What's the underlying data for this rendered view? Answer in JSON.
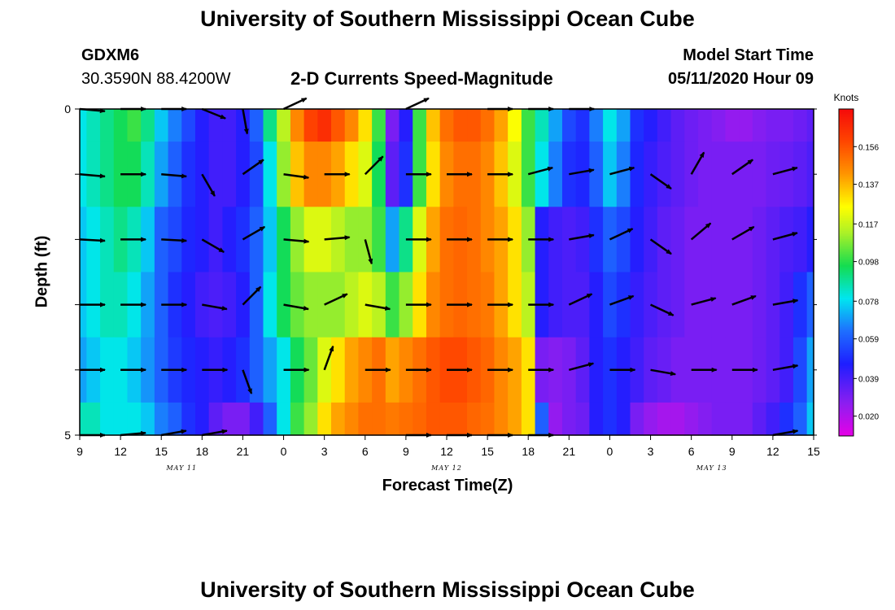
{
  "page_title": "University of Southern Mississippi Ocean Cube",
  "footer_title": "University of Southern Mississippi Ocean Cube",
  "station": {
    "id": "GDXM6",
    "coords": "30.3590N 88.4200W"
  },
  "model_start": {
    "label": "Model Start Time",
    "value": "05/11/2020 Hour 09"
  },
  "chart_data": {
    "type": "heatmap",
    "title": "2-D Currents Speed-Magnitude",
    "xlabel": "Forecast Time(Z)",
    "ylabel": "Depth (ft)",
    "x_ticks": [
      "9",
      "12",
      "15",
      "18",
      "21",
      "0",
      "3",
      "6",
      "9",
      "12",
      "15",
      "18",
      "21",
      "0",
      "3",
      "6",
      "9",
      "12",
      "15"
    ],
    "x_tick_hours": [
      0,
      3,
      6,
      9,
      12,
      15,
      18,
      21,
      24,
      27,
      30,
      33,
      36,
      39,
      42,
      45,
      48,
      51,
      54
    ],
    "date_labels": [
      {
        "text": "MAY 11",
        "hour": 7.5
      },
      {
        "text": "MAY 12",
        "hour": 27
      },
      {
        "text": "MAY 13",
        "hour": 46.5
      }
    ],
    "y_ticks": [
      "0",
      "5"
    ],
    "ylim": [
      0,
      5
    ],
    "xlim_hours": [
      0,
      54
    ],
    "colorbar": {
      "title": "Knots",
      "ticks": [
        "0.156",
        "0.137",
        "0.117",
        "0.098",
        "0.078",
        "0.059",
        "0.039",
        "0.020"
      ],
      "tick_values": [
        0.156,
        0.137,
        0.117,
        0.098,
        0.078,
        0.059,
        0.039,
        0.02
      ],
      "range": [
        0.01,
        0.175
      ]
    },
    "time_hours": [
      0,
      1,
      2,
      3,
      4,
      5,
      6,
      7,
      8,
      9,
      10,
      11,
      12,
      13,
      14,
      15,
      16,
      17,
      18,
      19,
      20,
      21,
      22,
      23,
      24,
      25,
      26,
      27,
      28,
      29,
      30,
      31,
      32,
      33,
      34,
      35,
      36,
      37,
      38,
      39,
      40,
      41,
      42,
      43,
      44,
      45,
      46,
      47,
      48,
      49,
      50,
      51,
      52,
      53,
      54
    ],
    "depth_rows_ft": [
      0,
      1,
      2,
      3,
      4,
      5
    ],
    "speed_knots": [
      [
        0.08,
        0.085,
        0.09,
        0.095,
        0.1,
        0.09,
        0.075,
        0.065,
        0.055,
        0.045,
        0.04,
        0.04,
        0.045,
        0.06,
        0.09,
        0.115,
        0.145,
        0.16,
        0.165,
        0.155,
        0.145,
        0.13,
        0.1,
        0.03,
        0.045,
        0.1,
        0.135,
        0.15,
        0.155,
        0.155,
        0.15,
        0.14,
        0.125,
        0.1,
        0.085,
        0.07,
        0.055,
        0.05,
        0.065,
        0.08,
        0.07,
        0.05,
        0.045,
        0.04,
        0.035,
        0.032,
        0.03,
        0.028,
        0.025,
        0.025,
        0.028,
        0.03,
        0.03,
        0.032,
        0.035
      ],
      [
        0.08,
        0.085,
        0.09,
        0.095,
        0.095,
        0.085,
        0.07,
        0.06,
        0.05,
        0.045,
        0.04,
        0.04,
        0.045,
        0.055,
        0.08,
        0.11,
        0.135,
        0.145,
        0.145,
        0.14,
        0.13,
        0.12,
        0.095,
        0.035,
        0.05,
        0.1,
        0.13,
        0.145,
        0.15,
        0.15,
        0.145,
        0.135,
        0.12,
        0.1,
        0.08,
        0.065,
        0.05,
        0.048,
        0.06,
        0.075,
        0.065,
        0.048,
        0.042,
        0.038,
        0.035,
        0.032,
        0.03,
        0.03,
        0.03,
        0.03,
        0.03,
        0.032,
        0.033,
        0.035,
        0.038
      ],
      [
        0.075,
        0.08,
        0.085,
        0.09,
        0.085,
        0.075,
        0.06,
        0.055,
        0.048,
        0.045,
        0.04,
        0.045,
        0.05,
        0.06,
        0.075,
        0.095,
        0.11,
        0.12,
        0.12,
        0.115,
        0.11,
        0.11,
        0.1,
        0.07,
        0.09,
        0.12,
        0.14,
        0.15,
        0.152,
        0.15,
        0.145,
        0.14,
        0.13,
        0.11,
        0.045,
        0.04,
        0.038,
        0.04,
        0.05,
        0.06,
        0.055,
        0.045,
        0.04,
        0.035,
        0.033,
        0.03,
        0.03,
        0.03,
        0.03,
        0.03,
        0.032,
        0.035,
        0.038,
        0.04,
        0.045
      ],
      [
        0.075,
        0.08,
        0.085,
        0.085,
        0.08,
        0.07,
        0.06,
        0.05,
        0.045,
        0.04,
        0.038,
        0.04,
        0.045,
        0.06,
        0.08,
        0.095,
        0.105,
        0.11,
        0.11,
        0.11,
        0.115,
        0.12,
        0.115,
        0.1,
        0.11,
        0.13,
        0.145,
        0.15,
        0.152,
        0.15,
        0.148,
        0.14,
        0.13,
        0.115,
        0.045,
        0.04,
        0.038,
        0.038,
        0.045,
        0.055,
        0.05,
        0.042,
        0.038,
        0.035,
        0.033,
        0.03,
        0.03,
        0.03,
        0.03,
        0.03,
        0.032,
        0.035,
        0.04,
        0.05,
        0.06
      ],
      [
        0.07,
        0.075,
        0.08,
        0.08,
        0.075,
        0.068,
        0.06,
        0.052,
        0.048,
        0.045,
        0.042,
        0.045,
        0.05,
        0.06,
        0.07,
        0.08,
        0.095,
        0.105,
        0.12,
        0.13,
        0.14,
        0.145,
        0.15,
        0.14,
        0.145,
        0.15,
        0.155,
        0.158,
        0.158,
        0.155,
        0.152,
        0.145,
        0.14,
        0.13,
        0.03,
        0.028,
        0.03,
        0.035,
        0.045,
        0.05,
        0.045,
        0.04,
        0.035,
        0.033,
        0.03,
        0.03,
        0.03,
        0.03,
        0.03,
        0.03,
        0.032,
        0.035,
        0.04,
        0.055,
        0.07
      ],
      [
        0.085,
        0.085,
        0.08,
        0.08,
        0.08,
        0.075,
        0.065,
        0.06,
        0.05,
        0.045,
        0.035,
        0.03,
        0.03,
        0.04,
        0.06,
        0.08,
        0.1,
        0.11,
        0.13,
        0.14,
        0.145,
        0.15,
        0.15,
        0.148,
        0.15,
        0.152,
        0.155,
        0.155,
        0.155,
        0.152,
        0.15,
        0.145,
        0.14,
        0.13,
        0.06,
        0.025,
        0.03,
        0.032,
        0.045,
        0.05,
        0.045,
        0.03,
        0.025,
        0.022,
        0.022,
        0.025,
        0.028,
        0.03,
        0.03,
        0.03,
        0.035,
        0.04,
        0.05,
        0.06,
        0.075
      ]
    ],
    "vectors_start_hour": 0,
    "vectors_step_hours": 3,
    "vector_direction_deg": [
      [
        5,
        0,
        0,
        22,
        80,
        -25,
        null,
        null,
        -25,
        null,
        0,
        0,
        0,
        null,
        null,
        null,
        null,
        null,
        null
      ],
      [
        5,
        0,
        5,
        60,
        -35,
        8,
        0,
        -45,
        0,
        0,
        0,
        -15,
        -10,
        -15,
        35,
        -60,
        -35,
        -15,
        null
      ],
      [
        3,
        0,
        3,
        30,
        -30,
        5,
        -5,
        75,
        0,
        0,
        0,
        0,
        -10,
        -25,
        35,
        -40,
        -30,
        -15,
        null
      ],
      [
        0,
        0,
        0,
        10,
        -45,
        10,
        -25,
        10,
        0,
        0,
        0,
        0,
        -25,
        -20,
        25,
        -15,
        -20,
        -10,
        null
      ],
      [
        0,
        0,
        0,
        0,
        70,
        0,
        -70,
        0,
        0,
        0,
        0,
        0,
        -15,
        0,
        10,
        0,
        0,
        -10,
        null
      ],
      [
        0,
        -5,
        -10,
        -10,
        null,
        null,
        null,
        null,
        0,
        0,
        0,
        0,
        null,
        null,
        null,
        null,
        null,
        -10,
        null
      ]
    ]
  }
}
